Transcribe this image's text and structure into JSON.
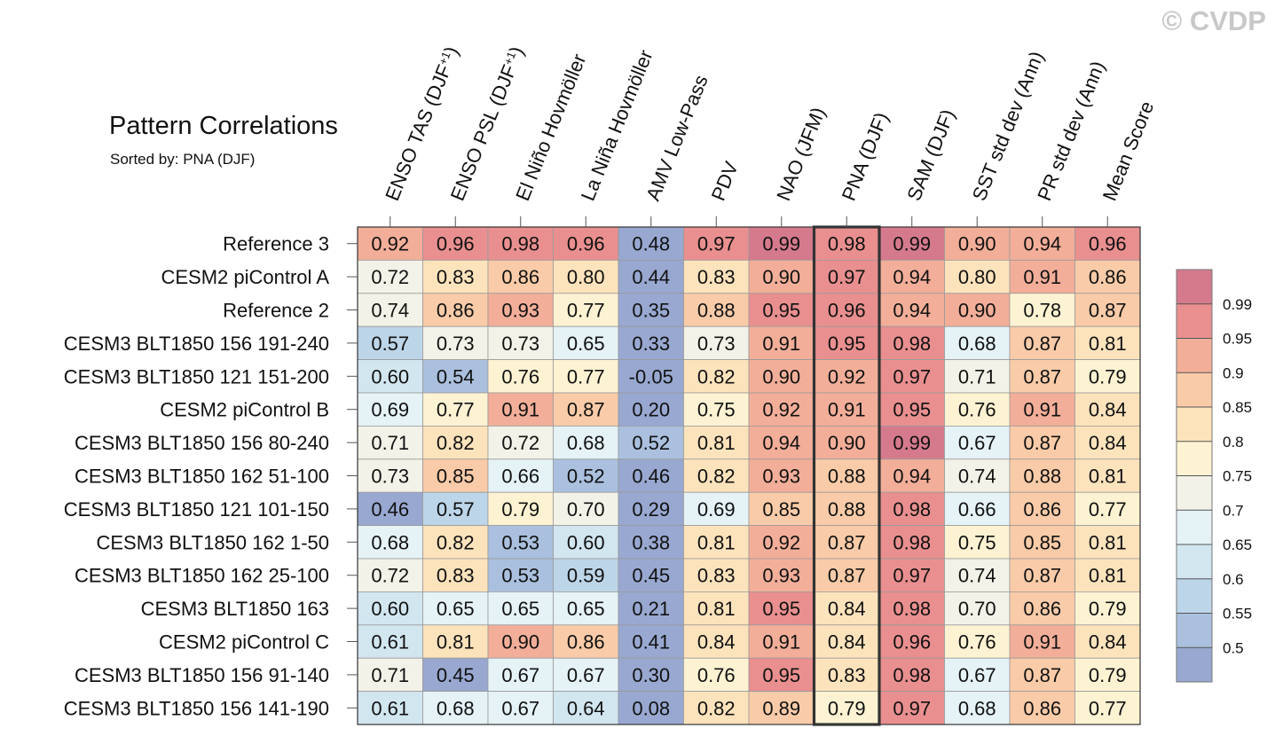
{
  "title": "Pattern Correlations",
  "subtitle": "Sorted by: PNA (DJF)",
  "watermark": "© CVDP",
  "chart_data": {
    "type": "heatmap",
    "columns": [
      "ENSO TAS (DJF+1)",
      "ENSO PSL (DJF+1)",
      "El Niño Hovmöller",
      "La Niña Hovmöller",
      "AMV Low-Pass",
      "PDV",
      "NAO (JFM)",
      "PNA (DJF)",
      "SAM (DJF)",
      "SST std dev (Ann)",
      "PR std dev (Ann)",
      "Mean Score"
    ],
    "column_labels": [
      {
        "base": "ENSO TAS (DJF",
        "sup": "+1",
        "tail": ")"
      },
      {
        "base": "ENSO PSL (DJF",
        "sup": "+1",
        "tail": ")"
      },
      {
        "base": "El Niño Hovmöller"
      },
      {
        "base": "La Niña Hovmöller"
      },
      {
        "base": "AMV Low-Pass"
      },
      {
        "base": "PDV"
      },
      {
        "base": "NAO (JFM)"
      },
      {
        "base": "PNA (DJF)"
      },
      {
        "base": "SAM (DJF)"
      },
      {
        "base": "SST std dev (Ann)"
      },
      {
        "base": "PR std dev (Ann)"
      },
      {
        "base": "Mean Score"
      }
    ],
    "rows": [
      "Reference 3",
      "CESM2 piControl A",
      "Reference 2",
      "CESM3 BLT1850 156 191-240",
      "CESM3 BLT1850 121 151-200",
      "CESM2 piControl B",
      "CESM3 BLT1850 156 80-240",
      "CESM3 BLT1850 162 51-100",
      "CESM3 BLT1850 121 101-150",
      "CESM3 BLT1850 162 1-50",
      "CESM3 BLT1850 162 25-100",
      "CESM3 BLT1850 163",
      "CESM2 piControl C",
      "CESM3 BLT1850 156 91-140",
      "CESM3 BLT1850 156 141-190"
    ],
    "values": [
      [
        "0.92",
        "0.96",
        "0.98",
        "0.96",
        "0.48",
        "0.97",
        "0.99",
        "0.98",
        "0.99",
        "0.90",
        "0.94",
        "0.96"
      ],
      [
        "0.72",
        "0.83",
        "0.86",
        "0.80",
        "0.44",
        "0.83",
        "0.90",
        "0.97",
        "0.94",
        "0.80",
        "0.91",
        "0.86"
      ],
      [
        "0.74",
        "0.86",
        "0.93",
        "0.77",
        "0.35",
        "0.88",
        "0.95",
        "0.96",
        "0.94",
        "0.90",
        "0.78",
        "0.87"
      ],
      [
        "0.57",
        "0.73",
        "0.73",
        "0.65",
        "0.33",
        "0.73",
        "0.91",
        "0.95",
        "0.98",
        "0.68",
        "0.87",
        "0.81"
      ],
      [
        "0.60",
        "0.54",
        "0.76",
        "0.77",
        "-0.05",
        "0.82",
        "0.90",
        "0.92",
        "0.97",
        "0.71",
        "0.87",
        "0.79"
      ],
      [
        "0.69",
        "0.77",
        "0.91",
        "0.87",
        "0.20",
        "0.75",
        "0.92",
        "0.91",
        "0.95",
        "0.76",
        "0.91",
        "0.84"
      ],
      [
        "0.71",
        "0.82",
        "0.72",
        "0.68",
        "0.52",
        "0.81",
        "0.94",
        "0.90",
        "0.99",
        "0.67",
        "0.87",
        "0.84"
      ],
      [
        "0.73",
        "0.85",
        "0.66",
        "0.52",
        "0.46",
        "0.82",
        "0.93",
        "0.88",
        "0.94",
        "0.74",
        "0.88",
        "0.81"
      ],
      [
        "0.46",
        "0.57",
        "0.79",
        "0.70",
        "0.29",
        "0.69",
        "0.85",
        "0.88",
        "0.98",
        "0.66",
        "0.86",
        "0.77"
      ],
      [
        "0.68",
        "0.82",
        "0.53",
        "0.60",
        "0.38",
        "0.81",
        "0.92",
        "0.87",
        "0.98",
        "0.75",
        "0.85",
        "0.81"
      ],
      [
        "0.72",
        "0.83",
        "0.53",
        "0.59",
        "0.45",
        "0.83",
        "0.93",
        "0.87",
        "0.97",
        "0.74",
        "0.87",
        "0.81"
      ],
      [
        "0.60",
        "0.65",
        "0.65",
        "0.65",
        "0.21",
        "0.81",
        "0.95",
        "0.84",
        "0.98",
        "0.70",
        "0.86",
        "0.79"
      ],
      [
        "0.61",
        "0.81",
        "0.90",
        "0.86",
        "0.41",
        "0.84",
        "0.91",
        "0.84",
        "0.96",
        "0.76",
        "0.91",
        "0.84"
      ],
      [
        "0.71",
        "0.45",
        "0.67",
        "0.67",
        "0.30",
        "0.76",
        "0.95",
        "0.83",
        "0.98",
        "0.67",
        "0.87",
        "0.79"
      ],
      [
        "0.61",
        "0.68",
        "0.67",
        "0.64",
        "0.08",
        "0.82",
        "0.89",
        "0.79",
        "0.97",
        "0.68",
        "0.86",
        "0.77"
      ]
    ],
    "highlight_column": "PNA (DJF)",
    "colorbar": {
      "thresholds": [
        0.5,
        0.55,
        0.6,
        0.65,
        0.7,
        0.75,
        0.8,
        0.85,
        0.9,
        0.95,
        0.99
      ],
      "tick_labels": [
        "0.5",
        "0.55",
        "0.6",
        "0.65",
        "0.7",
        "0.75",
        "0.8",
        "0.85",
        "0.9",
        "0.95",
        "0.99"
      ],
      "colors": [
        "#98a8d0",
        "#aac0de",
        "#bdd5e8",
        "#d2e6f0",
        "#e5f2f6",
        "#f2f2e8",
        "#fdf3d3",
        "#fde3bc",
        "#f9cba8",
        "#f2ae99",
        "#e98f8f",
        "#d57a8d"
      ]
    }
  }
}
